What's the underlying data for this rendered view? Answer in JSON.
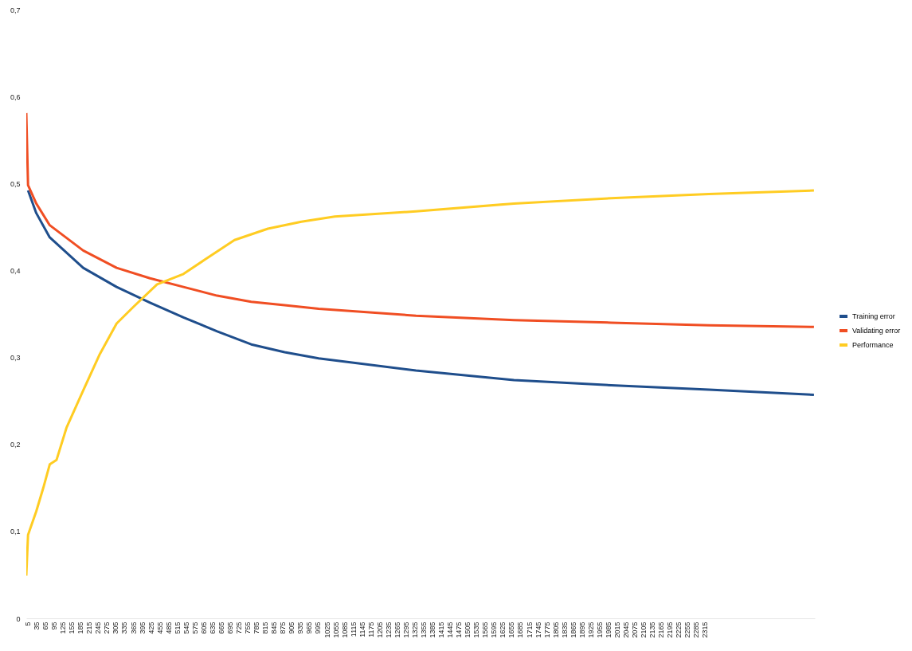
{
  "chart_data": {
    "type": "line",
    "xlim": [
      1,
      2690
    ],
    "ylim": [
      0,
      0.7
    ],
    "xticks": [
      5,
      35,
      65,
      95,
      125,
      155,
      185,
      215,
      245,
      275,
      305,
      335,
      365,
      395,
      425,
      455,
      485,
      515,
      545,
      575,
      605,
      635,
      665,
      695,
      725,
      755,
      785,
      815,
      845,
      875,
      905,
      935,
      965,
      995,
      1025,
      1055,
      1085,
      1115,
      1145,
      1175,
      1205,
      1235,
      1265,
      1295,
      1325,
      1355,
      1385,
      1415,
      1445,
      1475,
      1505,
      1535,
      1565,
      1595,
      1625,
      1655,
      1685,
      1715,
      1745,
      1775,
      1805,
      1835,
      1865,
      1895,
      1925,
      1955,
      1985,
      2015,
      2045,
      2075,
      2105,
      2135,
      2165,
      2195,
      2225,
      2255,
      2285,
      2315
    ],
    "yticks": [
      0,
      {
        "value": 0.1,
        "label": "0,1"
      },
      {
        "value": 0.2,
        "label": "0,2"
      },
      {
        "value": 0.3,
        "label": "0,3"
      },
      {
        "value": 0.4,
        "label": "0,4"
      },
      {
        "value": 0.5,
        "label": "0,5"
      },
      {
        "value": 0.6,
        "label": "0,6"
      },
      {
        "value": 0.7,
        "label": "0,7"
      }
    ],
    "grid": false,
    "legend": "right",
    "marker": "none",
    "line_style": "solid",
    "series": [
      {
        "name": "Training error",
        "color": "#1f4e8c",
        "x": [
          7,
          35,
          81,
          195,
          309,
          423,
          537,
          652,
          768,
          882,
          998,
          1330,
          1664,
          1995,
          2329,
          2687
        ],
        "values": [
          0.492,
          0.466,
          0.438,
          0.403,
          0.381,
          0.363,
          0.346,
          0.33,
          0.315,
          0.306,
          0.299,
          0.285,
          0.274,
          0.268,
          0.263,
          0.257
        ]
      },
      {
        "name": "Validating error",
        "color": "#f04e23",
        "x": [
          1,
          7,
          35,
          81,
          195,
          309,
          423,
          537,
          652,
          768,
          882,
          998,
          1330,
          1664,
          1995,
          2329,
          2687
        ],
        "values": [
          0.581,
          0.498,
          0.477,
          0.452,
          0.423,
          0.403,
          0.391,
          0.381,
          0.371,
          0.364,
          0.36,
          0.356,
          0.348,
          0.343,
          0.34,
          0.337,
          0.335
        ]
      },
      {
        "name": "Performance",
        "color": "#ffcc22",
        "x": [
          1,
          7,
          35,
          59,
          81,
          104,
          138,
          195,
          252,
          309,
          366,
          447,
          537,
          608,
          711,
          825,
          939,
          1053,
          1330,
          1664,
          1995,
          2329,
          2687
        ],
        "values": [
          0.049,
          0.096,
          0.123,
          0.15,
          0.177,
          0.182,
          0.219,
          0.262,
          0.304,
          0.339,
          0.358,
          0.384,
          0.396,
          0.412,
          0.435,
          0.448,
          0.456,
          0.462,
          0.468,
          0.477,
          0.483,
          0.488,
          0.492
        ]
      }
    ]
  }
}
